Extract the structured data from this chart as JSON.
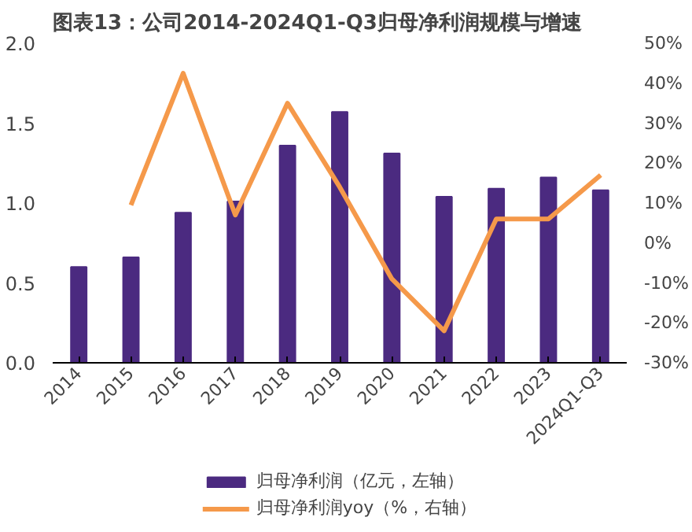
{
  "chart_data": {
    "type": "bar",
    "title": "图表13：公司2014-2024Q1-Q3归母净利润规模与增速",
    "categories": [
      "2014",
      "2015",
      "2016",
      "2017",
      "2018",
      "2019",
      "2020",
      "2021",
      "2022",
      "2023",
      "2024Q1-Q3"
    ],
    "series": [
      {
        "name": "归母净利润（亿元，左轴）",
        "color": "#4b2a80",
        "values": [
          0.6,
          0.66,
          0.94,
          1.01,
          1.36,
          1.57,
          1.31,
          1.04,
          1.09,
          1.16,
          1.08
        ]
      },
      {
        "name": "归母净利润yoy（%，右轴）",
        "type": "line",
        "axis": "y2",
        "color": "#f5994a",
        "values": [
          null,
          9.5,
          42.5,
          7,
          35,
          14,
          -9,
          -22,
          6,
          6,
          17
        ]
      }
    ],
    "ylim": [
      0,
      2
    ],
    "yticks": [
      {
        "value": 0,
        "label": "0.0"
      },
      {
        "value": 0.5,
        "label": "0.5"
      },
      {
        "value": 1,
        "label": "1.0"
      },
      {
        "value": 1.5,
        "label": "1.5"
      },
      {
        "value": 2,
        "label": "2.0"
      }
    ],
    "y2lim": [
      -30,
      50
    ],
    "y2ticks": [
      {
        "value": -30,
        "label": "-30%"
      },
      {
        "value": -20,
        "label": "-20%"
      },
      {
        "value": -10,
        "label": "-10%"
      },
      {
        "value": 0,
        "label": "0%"
      },
      {
        "value": 10,
        "label": "10%"
      },
      {
        "value": 20,
        "label": "20%"
      },
      {
        "value": 30,
        "label": "30%"
      },
      {
        "value": 40,
        "label": "40%"
      },
      {
        "value": 50,
        "label": "50%"
      }
    ],
    "grid": false,
    "legend": "bottom"
  }
}
